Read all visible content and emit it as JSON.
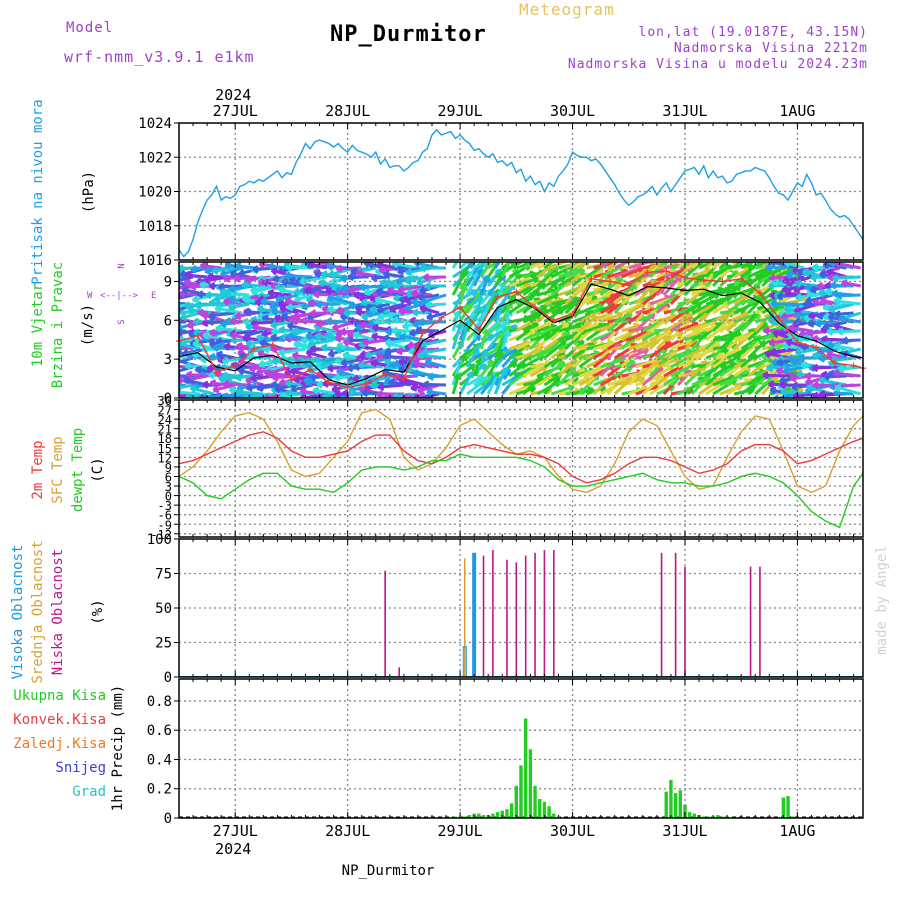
{
  "header": {
    "model_label": "Model",
    "model_name": "wrf-nmm_v3.9.1 e1km",
    "station": "NP_Durmitor",
    "product": "Meteogram",
    "coords": "lon,lat (19.0187E, 43.15N)",
    "elevation": "Nadmorska Visina 2212m",
    "model_elevation": "Nadmorska Visina u modelu 2024.23m",
    "footer_station": "NP_Durmitor",
    "credit": "made by Angel"
  },
  "colors": {
    "pressure": "#1ea0e6",
    "temp2m": "#ee3a3a",
    "sfc": "#d8a030",
    "dewpt": "#22cc22",
    "low_cloud": "#c0148c",
    "mid_cloud": "#d8a030",
    "high_cloud": "#1e96e6",
    "precip": "#22cc22",
    "conv": "#ee3a3a",
    "frozen": "#f07820",
    "snow": "#3c3cdc",
    "graupel": "#20c8c8",
    "label_purple": "#a040d0",
    "label_orange": "#e8c060"
  },
  "time_axis": {
    "year": "2024",
    "day_labels": [
      "27JUL",
      "28JUL",
      "29JUL",
      "30JUL",
      "31JUL",
      "1AUG"
    ],
    "day_positions_hours": [
      12,
      36,
      60,
      84,
      108,
      132
    ]
  },
  "chart_data": [
    {
      "type": "line",
      "panel": "pressure",
      "ylabel_title": "Pritisak na nivou mora",
      "unit": "(hPa)",
      "ylim": [
        1016,
        1024
      ],
      "yticks": [
        "1016",
        "1018",
        "1020",
        "1022",
        "1024"
      ],
      "x_hours": [
        0,
        1,
        2,
        3,
        4,
        5,
        6,
        7,
        8,
        9,
        10,
        11,
        12,
        13,
        14,
        15,
        16,
        17,
        18,
        19,
        20,
        21,
        22,
        23,
        24,
        25,
        26,
        27,
        28,
        29,
        30,
        31,
        32,
        33,
        34,
        35,
        36,
        37,
        38,
        39,
        40,
        41,
        42,
        43,
        44,
        45,
        46,
        47,
        48,
        49,
        50,
        51,
        52,
        53,
        54,
        55,
        56,
        57,
        58,
        59,
        60,
        61,
        62,
        63,
        64,
        65,
        66,
        67,
        68,
        69,
        70,
        71,
        72,
        73,
        74,
        75,
        76,
        77,
        78,
        79,
        80,
        81,
        82,
        83,
        84,
        85,
        86,
        87,
        88,
        89,
        90,
        91,
        92,
        93,
        94,
        95,
        96,
        97,
        98,
        99,
        100,
        101,
        102,
        103,
        104,
        105,
        106,
        107,
        108,
        109,
        110,
        111,
        112,
        113,
        114,
        115,
        116,
        117,
        118,
        119,
        120,
        121,
        122,
        123,
        124,
        125,
        126,
        127,
        128,
        129,
        130,
        131,
        132,
        133,
        134,
        135,
        136,
        137,
        138,
        139,
        140,
        141,
        142,
        143,
        144,
        145,
        146
      ],
      "series": [
        {
          "values": [
            1016.6,
            1016.2,
            1016.5,
            1017.2,
            1018.2,
            1018.9,
            1019.5,
            1019.8,
            1020.3,
            1019.5,
            1019.7,
            1019.6,
            1019.8,
            1020.3,
            1020.4,
            1020.6,
            1020.5,
            1020.7,
            1020.6,
            1020.8,
            1021.0,
            1021.2,
            1020.8,
            1021.1,
            1021.0,
            1021.7,
            1022.2,
            1022.8,
            1022.5,
            1022.9,
            1023.0,
            1022.9,
            1022.8,
            1022.6,
            1022.8,
            1022.5,
            1022.3,
            1022.7,
            1022.4,
            1022.3,
            1022.2,
            1022.0,
            1022.3,
            1021.6,
            1021.9,
            1021.4,
            1021.5,
            1021.5,
            1021.2,
            1021.4,
            1021.7,
            1021.8,
            1022.3,
            1022.5,
            1023.3,
            1023.6,
            1023.3,
            1023.4,
            1023.5,
            1023.1,
            1023.3,
            1023.0,
            1022.8,
            1022.4,
            1022.5,
            1022.2,
            1022.0,
            1022.2,
            1021.7,
            1021.8,
            1021.5,
            1021.7,
            1021.1,
            1021.3,
            1020.6,
            1020.9,
            1020.4,
            1020.6,
            1020.0,
            1020.5,
            1020.3,
            1020.9,
            1021.2,
            1021.6,
            1022.3,
            1022.1,
            1022.0,
            1022.0,
            1021.8,
            1021.9,
            1021.6,
            1021.2,
            1020.8,
            1020.4,
            1019.9,
            1019.5,
            1019.2,
            1019.4,
            1019.7,
            1019.8,
            1020.0,
            1020.3,
            1019.8,
            1020.2,
            1020.5,
            1020.0,
            1020.4,
            1020.8,
            1021.2,
            1021.3,
            1021.4,
            1021.0,
            1021.5,
            1020.8,
            1021.2,
            1020.8,
            1020.9,
            1020.5,
            1020.6,
            1021.0,
            1021.1,
            1021.2,
            1021.2,
            1021.4,
            1021.3,
            1021.2,
            1020.8,
            1020.3,
            1019.9,
            1019.8,
            1019.5,
            1020.0,
            1020.5,
            1020.3,
            1021.0,
            1020.5,
            1019.8,
            1019.9,
            1019.5,
            1019.0,
            1018.7,
            1018.5,
            1018.6,
            1018.4,
            1018.0,
            1017.6,
            1017.2
          ]
        }
      ]
    },
    {
      "type": "line",
      "panel": "wind",
      "ylabel_title": "10m Vjetar",
      "ylabel_sub": "Brzina i Pravac",
      "unit": "(m/s)",
      "ylim": [
        0,
        10.5
      ],
      "yticks": [
        "0",
        "3",
        "6",
        "9"
      ],
      "legend_compass": {
        "w": "W",
        "e": "E",
        "n": "N",
        "s": "S",
        "arrows": "<--|-->"
      },
      "x_hours": [
        0,
        4,
        8,
        12,
        16,
        20,
        24,
        28,
        32,
        36,
        40,
        44,
        48,
        52,
        56,
        60,
        64,
        68,
        72,
        76,
        80,
        84,
        88,
        92,
        96,
        100,
        104,
        108,
        112,
        116,
        120,
        124,
        128,
        132,
        136,
        140,
        144,
        146
      ],
      "series": [
        {
          "name": "speed",
          "values": [
            3.2,
            3.5,
            2.4,
            2.1,
            3.1,
            3.3,
            2.7,
            2.8,
            1.4,
            1.0,
            1.5,
            2.2,
            2.0,
            4.4,
            5.2,
            6.0,
            4.9,
            7.0,
            7.6,
            6.9,
            5.8,
            6.3,
            8.8,
            8.4,
            7.9,
            8.6,
            8.5,
            8.3,
            8.4,
            7.9,
            8.1,
            7.4,
            5.8,
            4.8,
            4.4,
            3.6,
            3.2,
            3.1
          ]
        },
        {
          "name": "gust",
          "values": [
            4.4,
            4.8,
            2.0,
            2.5,
            3.8,
            4.1,
            1.4,
            2.2,
            1.2,
            0.8,
            1.1,
            1.8,
            1.5,
            5.0,
            6.2,
            7.0,
            5.3,
            7.8,
            8.2,
            7.0,
            6.0,
            6.5,
            9.2,
            9.0,
            8.7,
            9.7,
            9.8,
            9.3,
            9.1,
            9.0,
            9.2,
            8.1,
            6.2,
            4.3,
            3.9,
            2.7,
            2.5,
            2.3
          ]
        }
      ],
      "wind_color_bands": [
        {
          "from_hour": 0,
          "to_hour": 58,
          "palette": "cyan-violet"
        },
        {
          "from_hour": 58,
          "to_hour": 70,
          "palette": "cyan-green"
        },
        {
          "from_hour": 70,
          "to_hour": 88,
          "palette": "green-yellow"
        },
        {
          "from_hour": 88,
          "to_hour": 108,
          "palette": "yellow-red"
        },
        {
          "from_hour": 108,
          "to_hour": 130,
          "palette": "green-yellow"
        },
        {
          "from_hour": 130,
          "to_hour": 146,
          "palette": "cyan-violet"
        }
      ]
    },
    {
      "type": "line",
      "panel": "temperature",
      "ylabel_titles": [
        "2m Temp",
        "SFC Temp",
        "dewpt Temp"
      ],
      "unit": "(C)",
      "ylim": [
        -13,
        30
      ],
      "yticks": [
        "-12",
        "-9",
        "-6",
        "-3",
        "0",
        "3",
        "6",
        "9",
        "12",
        "15",
        "18",
        "21",
        "24",
        "27",
        "30"
      ],
      "x_hours": [
        0,
        3,
        6,
        9,
        12,
        15,
        18,
        21,
        24,
        27,
        30,
        33,
        36,
        39,
        42,
        45,
        48,
        51,
        54,
        57,
        60,
        63,
        66,
        69,
        72,
        75,
        78,
        81,
        84,
        87,
        90,
        93,
        96,
        99,
        102,
        105,
        108,
        111,
        114,
        117,
        120,
        123,
        126,
        129,
        132,
        135,
        138,
        141,
        144,
        146
      ],
      "series": [
        {
          "name": "2m Temp",
          "values": [
            10,
            11,
            13,
            15,
            17,
            19,
            20,
            18,
            14,
            12,
            12,
            13,
            14,
            17,
            19,
            19,
            14,
            11,
            10,
            12,
            15,
            16,
            15,
            14,
            13,
            13,
            12,
            10,
            6,
            4,
            5,
            7,
            10,
            12,
            12,
            11,
            9,
            7,
            8,
            10,
            14,
            16,
            16,
            14,
            10,
            11,
            13,
            15,
            17,
            18
          ]
        },
        {
          "name": "SFC Temp",
          "values": [
            6,
            9,
            14,
            20,
            25,
            26,
            24,
            17,
            8,
            6,
            7,
            12,
            17,
            26,
            27,
            24,
            12,
            8,
            10,
            15,
            22,
            24,
            20,
            16,
            13,
            14,
            12,
            6,
            2,
            1,
            3,
            10,
            20,
            24,
            22,
            14,
            6,
            2,
            3,
            12,
            20,
            25,
            24,
            14,
            3,
            1,
            3,
            14,
            22,
            25
          ]
        },
        {
          "name": "dewpt Temp",
          "values": [
            6,
            4,
            0,
            -1,
            2,
            5,
            7,
            7,
            3,
            2,
            2,
            1,
            4,
            8,
            9,
            9,
            8,
            9,
            11,
            11,
            13,
            12,
            12,
            12,
            12,
            11,
            9,
            5,
            3,
            3,
            4,
            5,
            6,
            7,
            5,
            4,
            4,
            3,
            3,
            4,
            6,
            7,
            6,
            4,
            0,
            -5,
            -8,
            -10,
            3,
            7
          ]
        }
      ]
    },
    {
      "type": "bar",
      "panel": "clouds",
      "ylabel_titles": [
        "Visoka Oblacnost",
        "Srednja Oblacnost",
        "Niska Oblacnost"
      ],
      "unit": "(%)",
      "ylim": [
        0,
        100
      ],
      "yticks": [
        "0",
        "25",
        "50",
        "75",
        "100"
      ],
      "series": [
        {
          "name": "Niska Oblacnost",
          "x_hours": [
            44,
            47,
            65,
            67,
            70,
            72,
            74,
            76,
            78,
            80,
            103,
            106,
            108,
            122,
            124
          ],
          "values": [
            77,
            7,
            88,
            92,
            85,
            83,
            88,
            90,
            92,
            92,
            90,
            90,
            80,
            80,
            80
          ]
        },
        {
          "name": "Srednja Oblacnost",
          "x_hours": [
            61
          ],
          "values": [
            86
          ]
        },
        {
          "name": "Visoka Oblacnost",
          "x_hours": [
            61,
            63
          ],
          "values": [
            22,
            90
          ]
        }
      ]
    },
    {
      "type": "bar",
      "panel": "precip",
      "ylabel_titles": [
        "Ukupna Kisa",
        "Konvek.Kisa",
        "Zaledj.Kisa",
        "Snijeg",
        "Grad"
      ],
      "unit": "1hr Precip (mm)",
      "ylim": [
        0,
        0.95
      ],
      "yticks": [
        "0",
        "0.2",
        "0.4",
        "0.6",
        "0.8"
      ],
      "series": [
        {
          "name": "Ukupna Kisa",
          "x_hours": [
            59,
            60,
            61,
            62,
            63,
            64,
            65,
            66,
            67,
            68,
            69,
            70,
            71,
            72,
            73,
            74,
            75,
            76,
            77,
            78,
            79,
            80,
            81,
            104,
            105,
            106,
            107,
            108,
            109,
            110,
            111,
            112,
            113,
            114,
            115,
            116,
            117,
            129,
            130,
            131
          ],
          "values": [
            0.01,
            0.01,
            0.01,
            0.02,
            0.03,
            0.03,
            0.02,
            0.02,
            0.03,
            0.04,
            0.05,
            0.06,
            0.1,
            0.22,
            0.36,
            0.68,
            0.47,
            0.22,
            0.13,
            0.11,
            0.08,
            0.03,
            0.01,
            0.18,
            0.26,
            0.17,
            0.19,
            0.09,
            0.04,
            0.03,
            0.02,
            0.01,
            0.01,
            0.01,
            0.02,
            0.01,
            0.01,
            0.14,
            0.15,
            0.01
          ]
        }
      ]
    }
  ]
}
